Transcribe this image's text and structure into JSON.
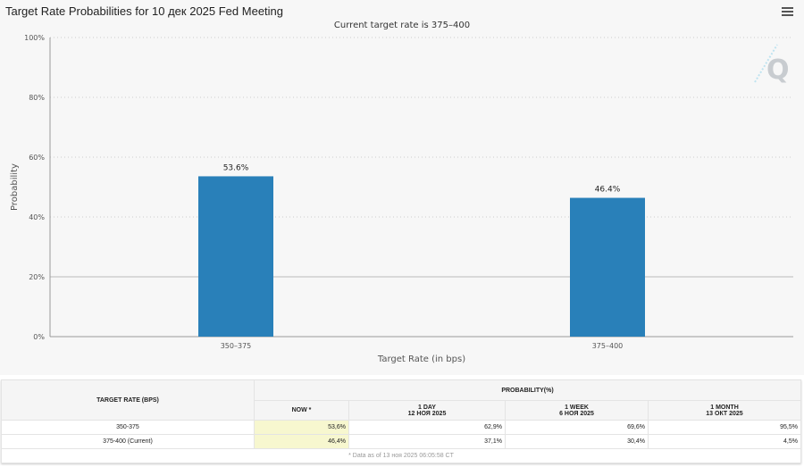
{
  "title": "Target Rate Probabilities for 10 дек 2025 Fed Meeting",
  "subtitle": "Current target rate is 375–400",
  "colors": {
    "bar": "#2980b9"
  },
  "chart_data": {
    "type": "bar",
    "title": "Target Rate Probabilities for 10 дек 2025 Fed Meeting",
    "subtitle": "Current target rate is 375–400",
    "categories": [
      "350–375",
      "375–400"
    ],
    "values": [
      53.6,
      46.4
    ],
    "data_labels": [
      "53.6%",
      "46.4%"
    ],
    "xlabel": "Target Rate (in bps)",
    "ylabel": "Probability",
    "ylim": [
      0,
      100
    ],
    "yticks": [
      "0%",
      "20%",
      "40%",
      "60%",
      "80%",
      "100%"
    ],
    "grid": true
  },
  "table": {
    "col_header": "TARGET RATE (BPS)",
    "group_header": "PROBABILITY(%)",
    "columns": [
      {
        "line1": "NOW *",
        "line2": ""
      },
      {
        "line1": "1 DAY",
        "line2": "12 НОЯ 2025"
      },
      {
        "line1": "1 WEEK",
        "line2": "6 НОЯ 2025"
      },
      {
        "line1": "1 MONTH",
        "line2": "13 ОКТ 2025"
      }
    ],
    "rows": [
      {
        "rate": "350-375",
        "values": [
          "53,6%",
          "62,9%",
          "69,6%",
          "95,5%"
        ]
      },
      {
        "rate": "375-400 (Current)",
        "values": [
          "46,4%",
          "37,1%",
          "30,4%",
          "4,5%"
        ]
      }
    ],
    "footnote": "* Data as of 13 ноя 2025 06:05:58 CT"
  }
}
